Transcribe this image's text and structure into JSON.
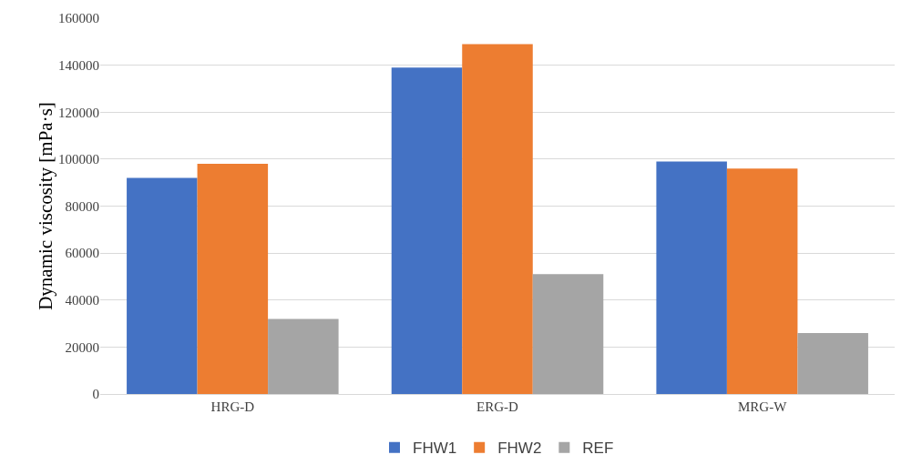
{
  "chart_data": {
    "type": "bar",
    "ylabel": "Dynamic viscosity [mPa·s]",
    "categories": [
      "HRG-D",
      "ERG-D",
      "MRG-W"
    ],
    "series": [
      {
        "name": "FHW1",
        "color": "#4472c4",
        "values": [
          92000,
          139000,
          99000
        ]
      },
      {
        "name": "FHW2",
        "color": "#ed7d31",
        "values": [
          98000,
          149000,
          96000
        ]
      },
      {
        "name": "REF",
        "color": "#a5a5a5",
        "values": [
          32000,
          51000,
          26000
        ]
      }
    ],
    "ylim": [
      0,
      160000
    ],
    "yticks": [
      0,
      20000,
      40000,
      60000,
      80000,
      100000,
      120000,
      140000,
      160000
    ],
    "grid": "y",
    "legend": "bottom"
  }
}
